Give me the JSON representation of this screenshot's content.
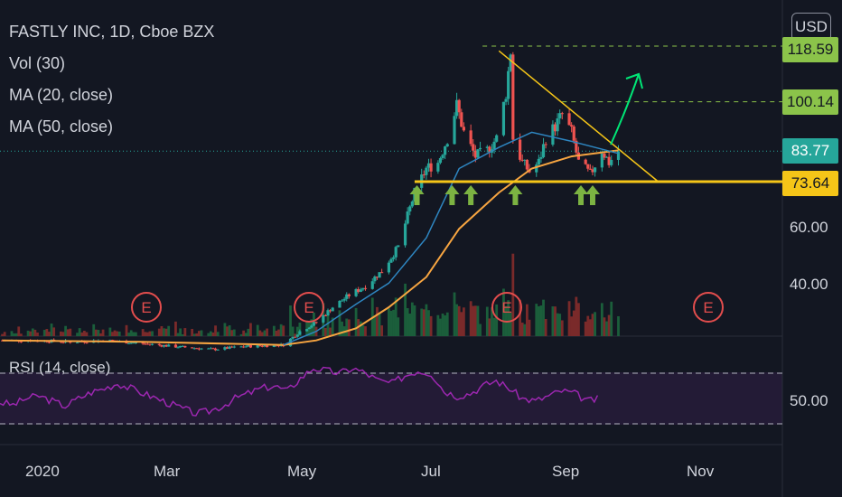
{
  "legend": {
    "title": "FASTLY INC, 1D, Cboe BZX",
    "vol": "Vol (30)",
    "ma20": "MA (20, close)",
    "ma50": "MA (50, close)",
    "rsi": "RSI (14, close)"
  },
  "currency": "USD",
  "price_tags": {
    "t1": "118.59",
    "t2": "100.14",
    "t3": "83.77",
    "t4": "73.64"
  },
  "y_ticks": [
    "60.00",
    "40.00"
  ],
  "rsi_tick": "50.00",
  "x_ticks": [
    "2020",
    "Mar",
    "May",
    "Jul",
    "Sep",
    "Nov"
  ],
  "earnings_label": "E",
  "colors": {
    "background": "#131722",
    "up": "#26a69a",
    "down": "#ef5350",
    "ma20": "#2e86c1",
    "ma50": "#f7a541",
    "support": "#f5c518",
    "trendline": "#f5c518",
    "rsi": "#9c27b0",
    "arrow_green": "#7cb342",
    "breakout_arrow": "#00e676",
    "tag_green": "#8bc34a",
    "tag_teal": "#26a69a",
    "tag_yellow": "#f5c518",
    "earnings": "#e34d4d"
  },
  "chart_data": {
    "type": "candlestick",
    "title": "FASTLY INC, 1D, Cboe BZX",
    "x_range": [
      "2020-01-01",
      "2020-11-30"
    ],
    "y_range": [
      20,
      125
    ],
    "levels": [
      {
        "value": 118.59,
        "style": "dashed"
      },
      {
        "value": 100.14,
        "style": "dashed"
      },
      {
        "value": 83.77,
        "style": "dotted"
      },
      {
        "value": 73.64,
        "style": "solid"
      }
    ],
    "trendline": {
      "from": {
        "date": "2020-08-01",
        "price": 117
      },
      "to": {
        "date": "2020-10-08",
        "price": 73.64
      }
    },
    "closes": [
      [
        "2020-01-02",
        21
      ],
      [
        "2020-01-15",
        21
      ],
      [
        "2020-02-01",
        20.5
      ],
      [
        "2020-02-15",
        21
      ],
      [
        "2020-03-01",
        20
      ],
      [
        "2020-03-15",
        19
      ],
      [
        "2020-04-01",
        18
      ],
      [
        "2020-04-15",
        19
      ],
      [
        "2020-05-01",
        19.5
      ],
      [
        "2020-05-08",
        24
      ],
      [
        "2020-05-15",
        27
      ],
      [
        "2020-05-22",
        32
      ],
      [
        "2020-05-29",
        36
      ],
      [
        "2020-06-05",
        39
      ],
      [
        "2020-06-12",
        44
      ],
      [
        "2020-06-19",
        52
      ],
      [
        "2020-06-26",
        70
      ],
      [
        "2020-07-01",
        78
      ],
      [
        "2020-07-06",
        80
      ],
      [
        "2020-07-10",
        88
      ],
      [
        "2020-07-14",
        99
      ],
      [
        "2020-07-17",
        90
      ],
      [
        "2020-07-22",
        82
      ],
      [
        "2020-07-27",
        84
      ],
      [
        "2020-07-31",
        88
      ],
      [
        "2020-08-04",
        103
      ],
      [
        "2020-08-06",
        117
      ],
      [
        "2020-08-07",
        88
      ],
      [
        "2020-08-11",
        80
      ],
      [
        "2020-08-14",
        77
      ],
      [
        "2020-08-18",
        80
      ],
      [
        "2020-08-21",
        88
      ],
      [
        "2020-08-25",
        92
      ],
      [
        "2020-08-28",
        96
      ],
      [
        "2020-09-01",
        90
      ],
      [
        "2020-09-04",
        80
      ],
      [
        "2020-09-09",
        76
      ],
      [
        "2020-09-14",
        84
      ],
      [
        "2020-09-17",
        80
      ],
      [
        "2020-09-21",
        83.77
      ]
    ],
    "ma50": [
      [
        "2020-01-02",
        21
      ],
      [
        "2020-03-01",
        20.5
      ],
      [
        "2020-05-01",
        19.5
      ],
      [
        "2020-05-15",
        21
      ],
      [
        "2020-06-01",
        25
      ],
      [
        "2020-06-15",
        32
      ],
      [
        "2020-07-01",
        42
      ],
      [
        "2020-07-15",
        58
      ],
      [
        "2020-08-01",
        70
      ],
      [
        "2020-08-15",
        78
      ],
      [
        "2020-09-01",
        82
      ],
      [
        "2020-09-21",
        84
      ]
    ],
    "ma20": [
      [
        "2020-05-01",
        19.5
      ],
      [
        "2020-05-15",
        24
      ],
      [
        "2020-06-01",
        33
      ],
      [
        "2020-06-15",
        40
      ],
      [
        "2020-07-01",
        55
      ],
      [
        "2020-07-15",
        78
      ],
      [
        "2020-08-01",
        85
      ],
      [
        "2020-08-15",
        90
      ],
      [
        "2020-09-01",
        87
      ],
      [
        "2020-09-21",
        83
      ]
    ],
    "rsi_levels": [
      70,
      30
    ],
    "rsi": [
      [
        0,
        47
      ],
      [
        1,
        45
      ],
      [
        2,
        50
      ],
      [
        3,
        52
      ],
      [
        4,
        48
      ],
      [
        5,
        44
      ],
      [
        6,
        50
      ],
      [
        7,
        55
      ],
      [
        8,
        58
      ],
      [
        9,
        62
      ],
      [
        10,
        58
      ],
      [
        11,
        54
      ],
      [
        12,
        50
      ],
      [
        13,
        46
      ],
      [
        14,
        42
      ],
      [
        15,
        38
      ],
      [
        16,
        40
      ],
      [
        17,
        44
      ],
      [
        18,
        50
      ],
      [
        19,
        54
      ],
      [
        20,
        58
      ],
      [
        21,
        60
      ],
      [
        22,
        56
      ],
      [
        23,
        66
      ],
      [
        24,
        74
      ],
      [
        25,
        72
      ],
      [
        26,
        70
      ],
      [
        27,
        74
      ],
      [
        28,
        70
      ],
      [
        29,
        64
      ],
      [
        30,
        62
      ],
      [
        31,
        68
      ],
      [
        32,
        72
      ],
      [
        33,
        70
      ],
      [
        34,
        56
      ],
      [
        35,
        52
      ],
      [
        36,
        54
      ],
      [
        37,
        60
      ],
      [
        38,
        64
      ],
      [
        39,
        58
      ],
      [
        40,
        50
      ],
      [
        41,
        48
      ],
      [
        42,
        52
      ],
      [
        43,
        56
      ],
      [
        44,
        54
      ],
      [
        45,
        48
      ],
      [
        46,
        50
      ]
    ]
  }
}
